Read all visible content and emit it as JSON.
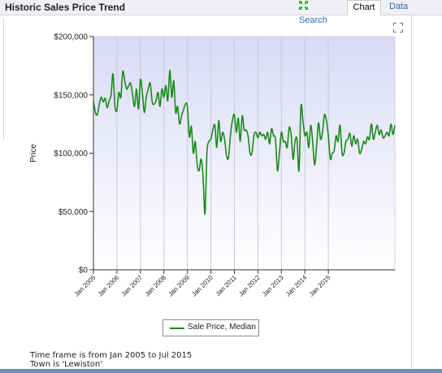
{
  "header": {
    "title": "Historic Sales Price Trend",
    "tabs": [
      {
        "label": "Search",
        "icon": "expand-arrows-icon"
      },
      {
        "label": "Chart",
        "active": true
      },
      {
        "label": "Data"
      }
    ]
  },
  "footer": {
    "timeframe": "Time frame is from Jan 2005 to Jul 2015",
    "town": "Town is 'Lewiston'"
  },
  "chart_data": {
    "type": "line",
    "title": "",
    "xlabel": "",
    "ylabel": "Price",
    "ylim": [
      0,
      200000
    ],
    "yticks": [
      {
        "value": 0,
        "label": "$0"
      },
      {
        "value": 50000,
        "label": "$50,000"
      },
      {
        "value": 100000,
        "label": "$100,000"
      },
      {
        "value": 150000,
        "label": "$150,000"
      },
      {
        "value": 200000,
        "label": "$200,000"
      }
    ],
    "xrange": [
      "Jan 2005",
      "Jul 2015"
    ],
    "xticks": [
      "Jan 2005",
      "Jan 2006",
      "Jan 2007",
      "Jan 2008",
      "Jan 2009",
      "Jan 2010",
      "Jan 2011",
      "Jan 2012",
      "Jan 2013",
      "Jan 2014",
      "Jan 2015"
    ],
    "grid": "vertical",
    "legend_position": "bottom",
    "series_color": "#1a8a1a",
    "series": [
      {
        "name": "Sale Price, Median",
        "values": [
          145000,
          135000,
          133000,
          142000,
          148000,
          144000,
          147000,
          139000,
          145000,
          150000,
          168000,
          140000,
          137000,
          152000,
          148000,
          170000,
          162000,
          155000,
          158000,
          160000,
          150000,
          140000,
          155000,
          138000,
          163000,
          152000,
          135000,
          148000,
          155000,
          160000,
          144000,
          142000,
          145000,
          152000,
          140000,
          155000,
          148000,
          158000,
          145000,
          171000,
          148000,
          162000,
          135000,
          140000,
          125000,
          132000,
          137000,
          142000,
          140000,
          114000,
          123000,
          100000,
          110000,
          90000,
          85000,
          95000,
          80000,
          48000,
          100000,
          110000,
          112000,
          120000,
          124000,
          105000,
          128000,
          110000,
          118000,
          112000,
          98000,
          96000,
          115000,
          128000,
          133000,
          118000,
          130000,
          110000,
          132000,
          120000,
          120000,
          115000,
          100000,
          100000,
          115000,
          118000,
          113000,
          118000,
          115000,
          116000,
          112000,
          118000,
          108000,
          121000,
          115000,
          112000,
          85000,
          100000,
          118000,
          110000,
          110000,
          105000,
          122000,
          116000,
          95000,
          110000,
          112000,
          85000,
          140000,
          128000,
          115000,
          118000,
          105000,
          124000,
          110000,
          90000,
          106000,
          126000,
          112000,
          118000,
          133000,
          128000,
          115000,
          95000,
          100000,
          102000,
          115000,
          110000,
          124000,
          100000,
          100000,
          110000,
          112000,
          117000,
          106000,
          115000,
          108000,
          112000,
          100000,
          103000,
          110000,
          108000,
          114000,
          112000,
          125000,
          112000,
          118000,
          124000,
          116000,
          120000,
          113000,
          115000,
          118000,
          115000,
          125000,
          116000,
          124000
        ]
      }
    ]
  }
}
